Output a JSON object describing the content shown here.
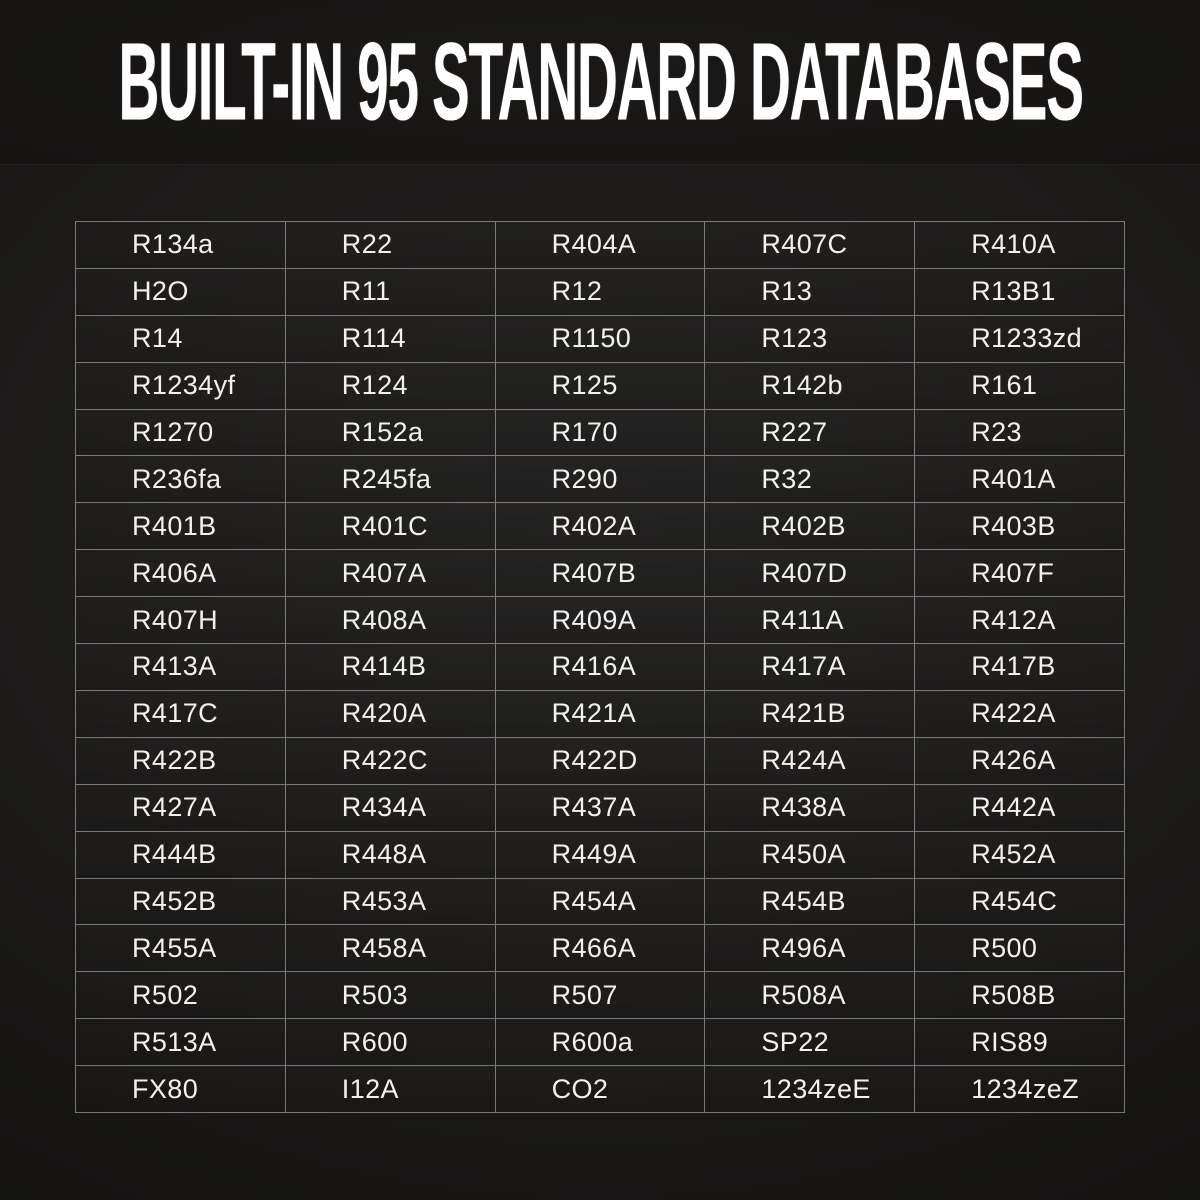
{
  "header": {
    "title": "BUILT-IN 95 STANDARD DATABASES"
  },
  "colors": {
    "page_background_center": "#222120",
    "page_background_corner": "#0c0b0a",
    "banner_background": "#151413",
    "grid_line": "#8f8f8d",
    "cell_text": "#f2f1ee",
    "title_text": "#ffffff"
  },
  "chart_data": {
    "type": "table",
    "title": "BUILT-IN 95 STANDARD DATABASES",
    "item_count": 95,
    "columns": 5,
    "row_count": 19,
    "legend_position": "none",
    "grid": true,
    "cells": [
      [
        "R134a",
        "R22",
        "R404A",
        "R407C",
        "R410A"
      ],
      [
        "H2O",
        "R11",
        "R12",
        "R13",
        "R13B1"
      ],
      [
        "R14",
        "R114",
        "R1150",
        "R123",
        "R1233zd"
      ],
      [
        "R1234yf",
        "R124",
        "R125",
        "R142b",
        "R161"
      ],
      [
        "R1270",
        "R152a",
        "R170",
        "R227",
        "R23"
      ],
      [
        "R236fa",
        "R245fa",
        "R290",
        "R32",
        "R401A"
      ],
      [
        "R401B",
        "R401C",
        "R402A",
        "R402B",
        "R403B"
      ],
      [
        "R406A",
        "R407A",
        "R407B",
        "R407D",
        "R407F"
      ],
      [
        "R407H",
        "R408A",
        "R409A",
        "R411A",
        "R412A"
      ],
      [
        "R413A",
        "R414B",
        "R416A",
        "R417A",
        "R417B"
      ],
      [
        "R417C",
        "R420A",
        "R421A",
        "R421B",
        "R422A"
      ],
      [
        "R422B",
        "R422C",
        "R422D",
        "R424A",
        "R426A"
      ],
      [
        "R427A",
        "R434A",
        "R437A",
        "R438A",
        "R442A"
      ],
      [
        "R444B",
        "R448A",
        "R449A",
        "R450A",
        "R452A"
      ],
      [
        "R452B",
        "R453A",
        "R454A",
        "R454B",
        "R454C"
      ],
      [
        "R455A",
        "R458A",
        "R466A",
        "R496A",
        "R500"
      ],
      [
        "R502",
        "R503",
        "R507",
        "R508A",
        "R508B"
      ],
      [
        "R513A",
        "R600",
        "R600a",
        "SP22",
        "RIS89"
      ],
      [
        "FX80",
        "I12A",
        "CO2",
        "1234zeE",
        "1234zeZ"
      ]
    ]
  }
}
